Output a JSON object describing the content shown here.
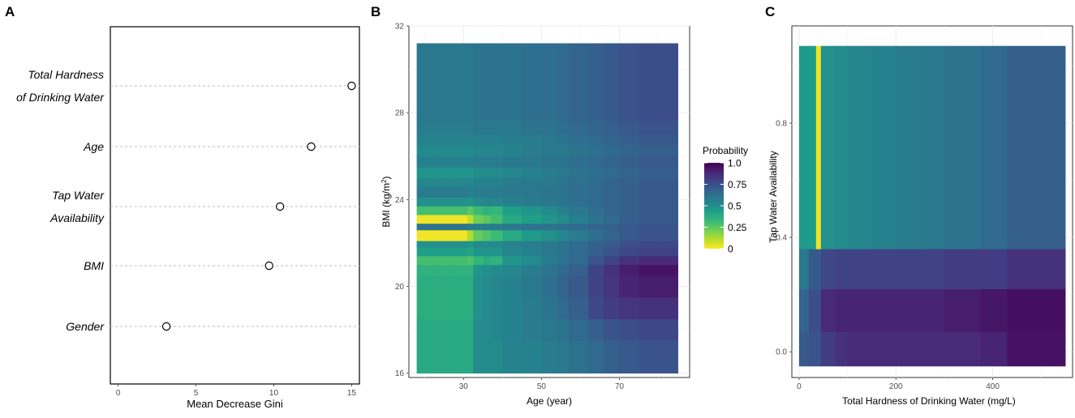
{
  "panels": {
    "a": "A",
    "b": "B",
    "c": "C"
  },
  "chart_data": [
    {
      "type": "scatter",
      "panel": "A",
      "title": "",
      "xlabel": "Mean Decrease Gini",
      "ylabel": "",
      "xlim": [
        -0.5,
        15.5
      ],
      "xticks": [
        "0",
        "5",
        "10",
        "15"
      ],
      "points": [
        {
          "label_lines": [
            "Total Hardness",
            "of Drinking Water"
          ],
          "value": 15.0
        },
        {
          "label_lines": [
            "Age"
          ],
          "value": 12.4
        },
        {
          "label_lines": [
            "Tap Water",
            "Availability"
          ],
          "value": 10.4
        },
        {
          "label_lines": [
            "BMI"
          ],
          "value": 9.7
        },
        {
          "label_lines": [
            "Gender"
          ],
          "value": 3.1
        }
      ]
    },
    {
      "type": "heatmap",
      "panel": "B",
      "xlabel": "Age (year)",
      "ylabel": "BMI (kg/m²)",
      "xlim": [
        16,
        88
      ],
      "ylim": [
        15.8,
        32
      ],
      "xticks": [
        "30",
        "50",
        "70"
      ],
      "yticks": [
        "16",
        "20",
        "24",
        "28",
        "32"
      ],
      "x_edges": [
        18,
        23,
        28,
        31,
        32.5,
        35,
        37,
        40,
        45,
        50,
        54,
        57,
        62,
        66,
        70,
        75,
        80,
        85
      ],
      "y_edges": [
        16,
        17.5,
        18.5,
        19.5,
        20.5,
        21,
        21.4,
        21.8,
        22.1,
        22.6,
        22.9,
        23.3,
        23.7,
        24.1,
        24.6,
        25,
        25.5,
        26,
        26.5,
        27,
        27.6,
        31.2
      ],
      "rows": [
        [
          0.4,
          0.4,
          0.4,
          0.4,
          0.52,
          0.52,
          0.52,
          0.55,
          0.56,
          0.58,
          0.6,
          0.63,
          0.66,
          0.7,
          0.72,
          0.74,
          0.74
        ],
        [
          0.4,
          0.4,
          0.4,
          0.4,
          0.52,
          0.52,
          0.54,
          0.56,
          0.58,
          0.6,
          0.62,
          0.66,
          0.7,
          0.74,
          0.76,
          0.78,
          0.78
        ],
        [
          0.38,
          0.38,
          0.38,
          0.38,
          0.5,
          0.52,
          0.54,
          0.56,
          0.58,
          0.62,
          0.66,
          0.7,
          0.78,
          0.82,
          0.85,
          0.86,
          0.86
        ],
        [
          0.38,
          0.38,
          0.38,
          0.38,
          0.5,
          0.52,
          0.54,
          0.56,
          0.6,
          0.64,
          0.68,
          0.72,
          0.8,
          0.85,
          0.9,
          0.92,
          0.92
        ],
        [
          0.36,
          0.36,
          0.36,
          0.36,
          0.48,
          0.5,
          0.52,
          0.54,
          0.58,
          0.62,
          0.66,
          0.7,
          0.8,
          0.86,
          0.92,
          0.95,
          0.95
        ],
        [
          0.3,
          0.3,
          0.3,
          0.28,
          0.34,
          0.38,
          0.36,
          0.48,
          0.52,
          0.58,
          0.62,
          0.66,
          0.74,
          0.8,
          0.86,
          0.88,
          0.88
        ],
        [
          0.44,
          0.44,
          0.44,
          0.42,
          0.48,
          0.48,
          0.48,
          0.54,
          0.56,
          0.6,
          0.62,
          0.66,
          0.7,
          0.74,
          0.78,
          0.8,
          0.8
        ],
        [
          0.5,
          0.5,
          0.5,
          0.48,
          0.52,
          0.52,
          0.52,
          0.56,
          0.58,
          0.6,
          0.62,
          0.66,
          0.7,
          0.72,
          0.76,
          0.78,
          0.78
        ],
        [
          0.02,
          0.02,
          0.02,
          0.12,
          0.24,
          0.28,
          0.32,
          0.4,
          0.46,
          0.5,
          0.54,
          0.58,
          0.64,
          0.68,
          0.72,
          0.74,
          0.74
        ],
        [
          0.62,
          0.62,
          0.62,
          0.58,
          0.58,
          0.58,
          0.58,
          0.6,
          0.62,
          0.62,
          0.64,
          0.66,
          0.68,
          0.7,
          0.72,
          0.74,
          0.74
        ],
        [
          0.02,
          0.02,
          0.02,
          0.1,
          0.22,
          0.26,
          0.3,
          0.4,
          0.44,
          0.48,
          0.52,
          0.56,
          0.62,
          0.66,
          0.7,
          0.72,
          0.72
        ],
        [
          0.3,
          0.3,
          0.3,
          0.26,
          0.32,
          0.36,
          0.34,
          0.44,
          0.48,
          0.52,
          0.56,
          0.6,
          0.64,
          0.68,
          0.7,
          0.72,
          0.72
        ],
        [
          0.5,
          0.5,
          0.5,
          0.48,
          0.52,
          0.54,
          0.54,
          0.56,
          0.58,
          0.6,
          0.62,
          0.64,
          0.66,
          0.68,
          0.7,
          0.72,
          0.72
        ],
        [
          0.58,
          0.58,
          0.58,
          0.56,
          0.58,
          0.58,
          0.58,
          0.6,
          0.6,
          0.62,
          0.62,
          0.64,
          0.66,
          0.68,
          0.7,
          0.72,
          0.72
        ],
        [
          0.54,
          0.54,
          0.54,
          0.54,
          0.56,
          0.56,
          0.56,
          0.58,
          0.6,
          0.6,
          0.62,
          0.64,
          0.66,
          0.68,
          0.7,
          0.72,
          0.72
        ],
        [
          0.48,
          0.48,
          0.48,
          0.48,
          0.52,
          0.52,
          0.52,
          0.54,
          0.56,
          0.58,
          0.6,
          0.62,
          0.64,
          0.66,
          0.68,
          0.7,
          0.7
        ],
        [
          0.56,
          0.56,
          0.56,
          0.56,
          0.58,
          0.58,
          0.58,
          0.6,
          0.6,
          0.62,
          0.62,
          0.64,
          0.66,
          0.68,
          0.7,
          0.72,
          0.72
        ],
        [
          0.52,
          0.52,
          0.52,
          0.52,
          0.54,
          0.54,
          0.54,
          0.56,
          0.58,
          0.6,
          0.6,
          0.62,
          0.64,
          0.66,
          0.68,
          0.7,
          0.7
        ],
        [
          0.55,
          0.55,
          0.55,
          0.55,
          0.56,
          0.56,
          0.56,
          0.58,
          0.58,
          0.6,
          0.62,
          0.64,
          0.66,
          0.68,
          0.7,
          0.72,
          0.72
        ],
        [
          0.58,
          0.58,
          0.58,
          0.58,
          0.6,
          0.6,
          0.6,
          0.6,
          0.62,
          0.62,
          0.64,
          0.66,
          0.68,
          0.7,
          0.72,
          0.74,
          0.74
        ],
        [
          0.6,
          0.6,
          0.6,
          0.6,
          0.62,
          0.62,
          0.62,
          0.62,
          0.64,
          0.64,
          0.66,
          0.68,
          0.7,
          0.72,
          0.74,
          0.76,
          0.76
        ],
        [
          0.7,
          0.7,
          0.7,
          0.7,
          0.74,
          0.74,
          0.74,
          0.78,
          0.8,
          0.82,
          0.84,
          0.85,
          0.86,
          0.87,
          0.88,
          0.89,
          0.89
        ]
      ]
    },
    {
      "type": "heatmap",
      "panel": "C",
      "xlabel": "Total Hardness of Drinking Water (mg/L)",
      "ylabel": "Tap Water Availability",
      "xlim": [
        -15,
        565
      ],
      "ylim": [
        -0.09,
        1.14
      ],
      "xticks": [
        "0",
        "200",
        "400"
      ],
      "yticks": [
        "0.0",
        "0.4",
        "0.8"
      ],
      "x_edges": [
        0,
        20,
        35,
        45,
        75,
        100,
        150,
        200,
        250,
        300,
        375,
        430,
        550
      ],
      "y_edges": [
        -0.05,
        0.07,
        0.22,
        0.36,
        1.07
      ],
      "rows": [
        [
          0.72,
          0.74,
          0.74,
          0.82,
          0.86,
          0.88,
          0.88,
          0.88,
          0.88,
          0.88,
          0.9,
          0.95
        ],
        [
          0.68,
          0.76,
          0.76,
          0.88,
          0.9,
          0.9,
          0.9,
          0.9,
          0.9,
          0.92,
          0.94,
          0.96
        ],
        [
          0.6,
          0.72,
          0.72,
          0.78,
          0.8,
          0.8,
          0.8,
          0.8,
          0.8,
          0.82,
          0.82,
          0.86
        ],
        [
          0.46,
          0.44,
          0.02,
          0.5,
          0.52,
          0.54,
          0.56,
          0.58,
          0.6,
          0.62,
          0.66,
          0.7
        ]
      ]
    }
  ],
  "legend": {
    "title": "Probability",
    "labels": [
      "1.0",
      "0.75",
      "0.5",
      "0.25",
      "0"
    ],
    "values": [
      1.0,
      0.75,
      0.5,
      0.25,
      0
    ]
  },
  "palette": {
    "viridis_rev": [
      "#fde725",
      "#b5de2b",
      "#6ece58",
      "#35b779",
      "#1f9e89",
      "#26828e",
      "#31688e",
      "#3e4989",
      "#482878",
      "#440154"
    ],
    "grid": "#ebebeb",
    "dot_line": "#bebebe"
  }
}
